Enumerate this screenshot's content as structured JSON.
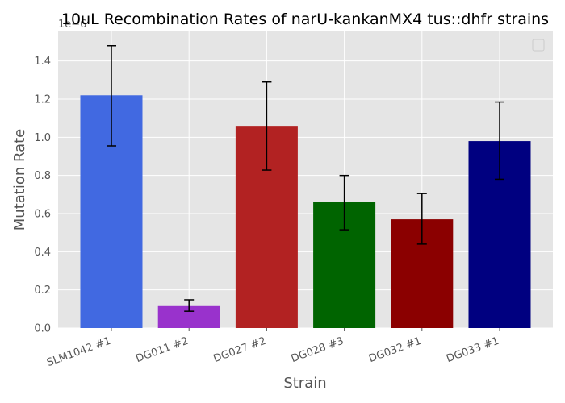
{
  "chart_data": {
    "type": "bar",
    "title": "10uL Recombination Rates of narU-kankanMX4 tus::dhfr strains",
    "xlabel": "Strain",
    "ylabel": "Mutation Rate",
    "y_offset_label": "1e−6",
    "scale": 1e-06,
    "categories": [
      "SLM1042 #1",
      "DG011 #2",
      "DG027 #2",
      "DG028 #3",
      "DG032 #1",
      "DG033 #1"
    ],
    "values": [
      1.22,
      0.115,
      1.06,
      0.66,
      0.57,
      0.98
    ],
    "errors_lower": [
      0.955,
      0.088,
      0.828,
      0.515,
      0.44,
      0.78
    ],
    "errors_upper": [
      1.48,
      0.148,
      1.29,
      0.8,
      0.705,
      1.185
    ],
    "colors": [
      "#4169e1",
      "#9932cc",
      "#b22222",
      "#006400",
      "#8b0000",
      "#000080"
    ],
    "ylim": [
      0,
      1.555
    ],
    "yticks": [
      "0.0",
      "0.2",
      "0.4",
      "0.6",
      "0.8",
      "1.0",
      "1.2",
      "1.4"
    ],
    "grid": true,
    "legend_position": "top-right",
    "style": {
      "background": "#e5e5e5",
      "grid_color": "#ffffff"
    }
  }
}
